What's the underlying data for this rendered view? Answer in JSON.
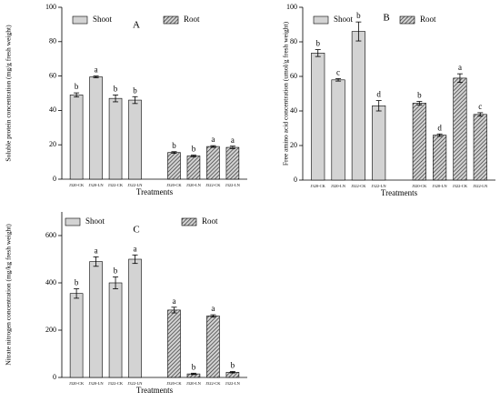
{
  "chart_data": [
    {
      "type": "bar",
      "annotation": "A",
      "y_label": "Soluble protein concentration (mg/g fresh weight)",
      "x_label": "Treatments",
      "categories": [
        "J320-CK",
        "J320-LN",
        "J322-CK",
        "J322-LN",
        "J320-CK",
        "J320-LN",
        "J322-CK",
        "J322-LN"
      ],
      "series": [
        {
          "name": "Shoot",
          "color": "#d3d3d3",
          "hatch": false,
          "values": [
            49,
            59.5,
            47,
            46,
            null,
            null,
            null,
            null
          ],
          "errors": [
            1.2,
            0.5,
            2,
            2,
            null,
            null,
            null,
            null
          ],
          "letters": [
            "b",
            "a",
            "b",
            "b",
            null,
            null,
            null,
            null
          ]
        },
        {
          "name": "Root",
          "color": "#d3d3d3",
          "hatch": true,
          "values": [
            null,
            null,
            null,
            null,
            15.5,
            13.5,
            19,
            18.5
          ],
          "errors": [
            null,
            null,
            null,
            null,
            0.5,
            0.5,
            0.5,
            0.7
          ],
          "letters": [
            null,
            null,
            null,
            null,
            "b",
            "b",
            "a",
            "a"
          ]
        }
      ],
      "ylim": [
        0,
        100
      ],
      "yticks": [
        0,
        20,
        40,
        60,
        80,
        100
      ]
    },
    {
      "type": "bar",
      "annotation": "B",
      "y_label": "Free amino acid concentration (umol/g fresh weight)",
      "x_label": "Treatments",
      "categories": [
        "J320-CK",
        "J320-LN",
        "J322-CK",
        "J322-LN",
        "J320-CK",
        "J320-LN",
        "J322-CK",
        "J322-LN"
      ],
      "series": [
        {
          "name": "Shoot",
          "color": "#d3d3d3",
          "hatch": false,
          "values": [
            73.5,
            58,
            86,
            43,
            null,
            null,
            null,
            null
          ],
          "errors": [
            2,
            0.7,
            5.5,
            3,
            null,
            null,
            null,
            null
          ],
          "letters": [
            "b",
            "c",
            "b",
            "d",
            null,
            null,
            null,
            null
          ]
        },
        {
          "name": "Root",
          "color": "#d3d3d3",
          "hatch": true,
          "values": [
            null,
            null,
            null,
            null,
            44.5,
            26,
            59,
            38
          ],
          "errors": [
            null,
            null,
            null,
            null,
            1,
            0.7,
            2.5,
            1
          ],
          "letters": [
            null,
            null,
            null,
            null,
            "b",
            "d",
            "a",
            "c"
          ]
        }
      ],
      "ylim": [
        0,
        100
      ],
      "yticks": [
        0,
        20,
        40,
        60,
        80,
        100
      ]
    },
    {
      "type": "bar",
      "annotation": "C",
      "y_label": "Nitrate nitrogen concentration (mg/kg fresh weight)",
      "x_label": "Treatments",
      "categories": [
        "J320-CK",
        "J320-LN",
        "J322-CK",
        "J322-LN",
        "J320-CK",
        "J320-LN",
        "J322-CK",
        "J322-LN"
      ],
      "series": [
        {
          "name": "Shoot",
          "color": "#d3d3d3",
          "hatch": false,
          "values": [
            355,
            490,
            400,
            500,
            null,
            null,
            null,
            null
          ],
          "errors": [
            20,
            20,
            25,
            18,
            null,
            null,
            null,
            null
          ],
          "letters": [
            "b",
            "a",
            "b",
            "a",
            null,
            null,
            null,
            null
          ]
        },
        {
          "name": "Root",
          "color": "#d3d3d3",
          "hatch": true,
          "values": [
            null,
            null,
            null,
            null,
            285,
            15,
            260,
            22
          ],
          "errors": [
            null,
            null,
            null,
            null,
            12,
            3,
            5,
            3
          ],
          "letters": [
            null,
            null,
            null,
            null,
            "a",
            "b",
            "a",
            "b"
          ]
        }
      ],
      "ylim": [
        0,
        700
      ],
      "yticks": [
        0,
        200,
        400,
        600
      ]
    }
  ]
}
